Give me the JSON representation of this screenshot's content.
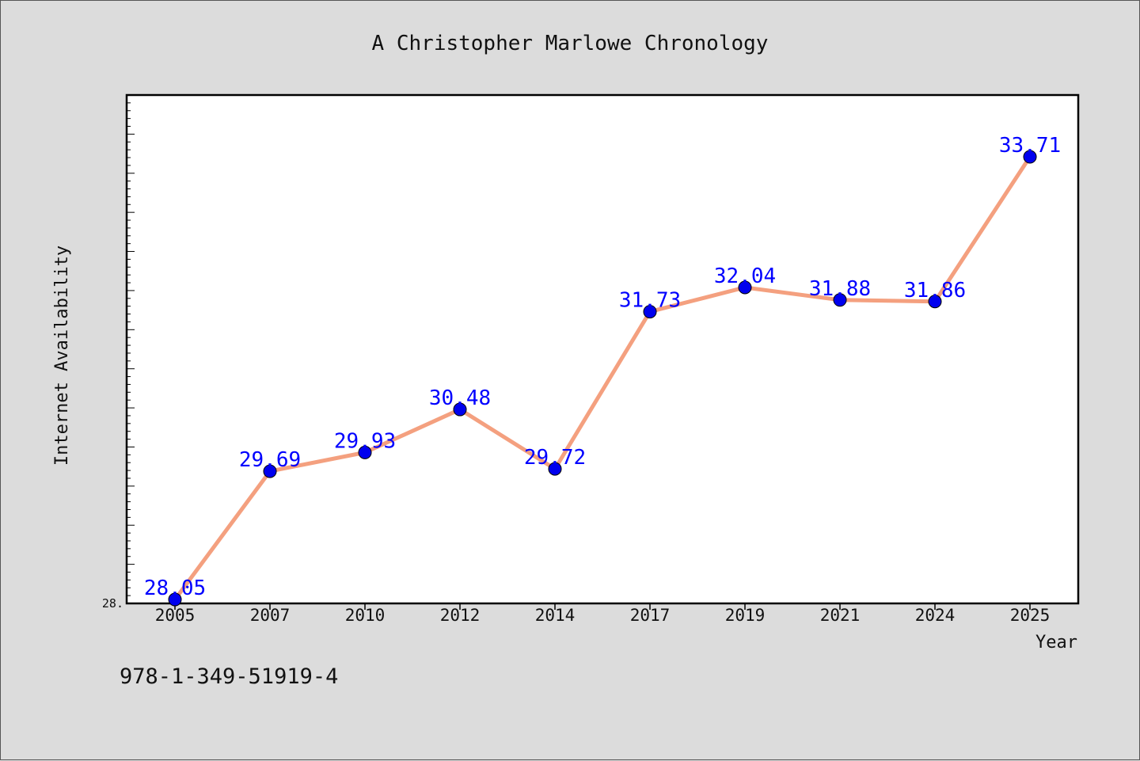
{
  "caption": "978-1-349-51919-4",
  "chart_data": {
    "type": "line",
    "title": "A Christopher Marlowe Chronology",
    "xlabel": "Year",
    "ylabel": "Internet Availability",
    "categories": [
      "2005",
      "2007",
      "2010",
      "2012",
      "2014",
      "2017",
      "2019",
      "2021",
      "2024",
      "2025"
    ],
    "series": [
      {
        "values": [
          28.05,
          29.69,
          29.93,
          30.48,
          29.72,
          31.73,
          32.04,
          31.88,
          31.86,
          33.71
        ],
        "labels": [
          "28.05",
          "29.69",
          "29.93",
          "30.48",
          "29.72",
          "31.73",
          "32.04",
          "31.88",
          "31.86",
          "33.71"
        ],
        "line_color": "#f4a07f",
        "marker_color": "#0000ee"
      }
    ],
    "ylim": [
      28.0,
      34.5
    ],
    "ytick_labels": [
      "28."
    ],
    "grid": false,
    "legend": "none"
  }
}
